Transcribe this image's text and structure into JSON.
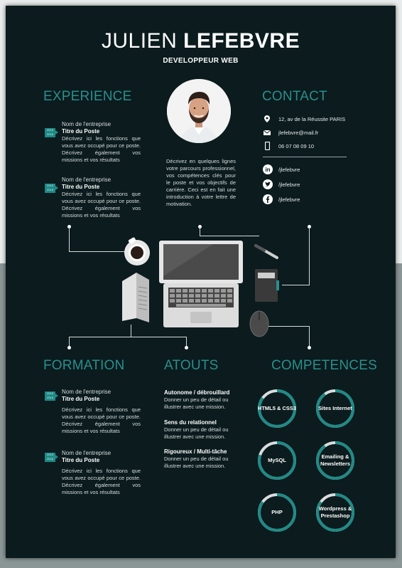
{
  "header": {
    "first_name": "JULIEN",
    "last_name": "LEFEBVRE",
    "job": "DEVELOPPEUR WEB"
  },
  "intro": "Décrivez en quelques lignes votre parcours professionnel, vos compétences clés pour le poste et vos objectifs de carrière. Ceci est en fait une introduction à votre lettre de motivation.",
  "experience": {
    "title": "EXPERIENCE",
    "items": [
      {
        "badge_from": "2015",
        "badge_to": "2016",
        "company": "Nom de l'entreprise",
        "job_title": "Titre du Poste",
        "description": "Décrivez ici les fonctions que vous avez occupé pour ce poste. Décrivez également vos missions et vos résultats"
      },
      {
        "badge_from": "2015",
        "badge_to": "2016",
        "company": "Nom de l'entreprise",
        "job_title": "Titre du Poste",
        "description": "Décrivez ici les fonctions que vous avez occupé pour ce poste. Décrivez également vos missions et vos résultats"
      }
    ]
  },
  "contact": {
    "title": "CONTACT",
    "address": "12, av de la Réussite PARIS",
    "email": "jlefebvre@mail.fr",
    "phone": "06 07 08 09 10",
    "linkedin": "/jlefebvre",
    "twitter": "/jlefebvre",
    "facebook": "/jlefebvre"
  },
  "formation": {
    "title": "FORMATION",
    "items": [
      {
        "badge_from": "2015",
        "badge_to": "2016",
        "company": "Nom de l'entreprise",
        "job_title": "Titre du Poste",
        "description": "Décrivez ici les fonctions que vous avez occupé pour ce poste. Décrivez également vos missions et vos résultats"
      },
      {
        "badge_from": "2015",
        "badge_to": "2016",
        "company": "Nom de l'entreprise",
        "job_title": "Titre du Poste",
        "description": "Décrivez ici les fonctions que vous avez occupé pour ce poste. Décrivez également vos missions et vos résultats"
      }
    ]
  },
  "atouts": {
    "title": "ATOUTS",
    "items": [
      {
        "title": "Autonome / débrouillard",
        "description": "Donner un peu de détail ou illustrer avec une mission."
      },
      {
        "title": "Sens du relationnel",
        "description": "Donner un peu de détail ou illustrer avec une mission."
      },
      {
        "title": "Rigoureux / Multi-tâche",
        "description": "Donner un peu de détail ou illustrer avec une mission."
      }
    ]
  },
  "competences": {
    "title": "COMPETENCES",
    "skills": [
      {
        "name": "HTML5 & CSS3",
        "level": 0.85
      },
      {
        "name": "Sites Internet",
        "level": 0.9
      },
      {
        "name": "MySQL",
        "level": 0.8
      },
      {
        "name": "Emailing & Newsletters",
        "level": 0.9
      },
      {
        "name": "PHP",
        "level": 0.85
      },
      {
        "name": "Wordpress & Prestashop",
        "level": 0.85
      }
    ]
  },
  "colors": {
    "page_bg": "#0b1b1e",
    "accent": "#1f8a86",
    "section_title": "#2a8f8c",
    "ring_remaining": "#d9dddd"
  },
  "icons": [
    "location-pin-icon",
    "envelope-icon",
    "phone-icon",
    "linkedin-icon",
    "twitter-icon",
    "facebook-icon"
  ]
}
